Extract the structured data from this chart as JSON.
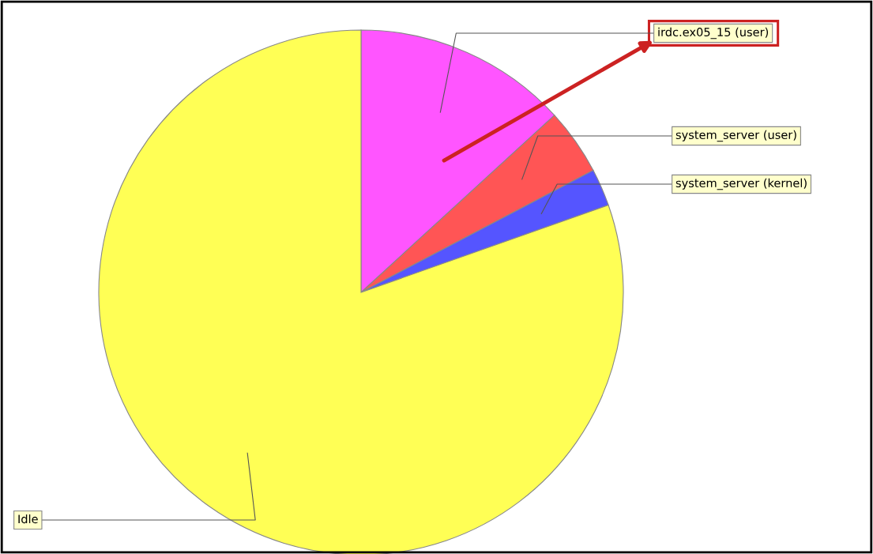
{
  "chart_data": {
    "type": "pie",
    "categories": [
      "irdc.ex05_15 (user)",
      "system_server (user)",
      "system_server (kernel)",
      "Idle"
    ],
    "values": [
      13.2,
      4.1,
      2.3,
      80.4
    ],
    "colors": [
      "#ff55ff",
      "#ff5555",
      "#5555ff",
      "#ffff55"
    ]
  }
}
